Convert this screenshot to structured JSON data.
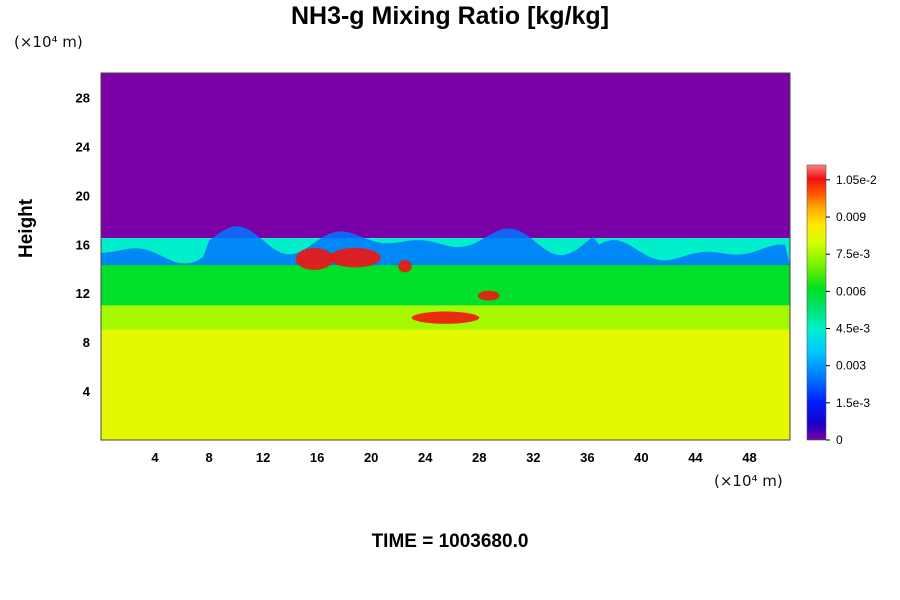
{
  "chart_data": {
    "type": "heatmap",
    "title": "NH3-g Mixing Ratio [kg/kg]",
    "ylabel": "Height",
    "x_unit": "(×10⁴ m)",
    "y_unit": "(×10⁴ m)",
    "xlim": [
      0,
      51
    ],
    "ylim": [
      0,
      30
    ],
    "xticks": [
      4,
      8,
      12,
      16,
      20,
      24,
      28,
      32,
      36,
      40,
      44,
      48
    ],
    "yticks": [
      4,
      8,
      12,
      16,
      20,
      24,
      28
    ],
    "colorbar": {
      "range": [
        0,
        0.0111
      ],
      "tick_values": [
        0,
        0.0015,
        0.003,
        0.0045,
        0.006,
        0.0075,
        0.009,
        0.0105
      ],
      "tick_labels": [
        "0",
        "1.5e-3",
        "0.003",
        "4.5e-3",
        "0.006",
        "7.5e-3",
        "0.009",
        "1.05e-2"
      ]
    },
    "field_layers": [
      {
        "height_range": [
          16.5,
          30
        ],
        "value": 0.0
      },
      {
        "height_range": [
          14.5,
          16.5
        ],
        "value": 0.0045
      },
      {
        "height_range": [
          11.0,
          14.5
        ],
        "value": 0.006
      },
      {
        "height_range": [
          9.0,
          11.0
        ],
        "value": 0.0075
      },
      {
        "height_range": [
          0,
          9.0
        ],
        "value": 0.0082
      }
    ],
    "time_label": "TIME = 1003680.0"
  }
}
